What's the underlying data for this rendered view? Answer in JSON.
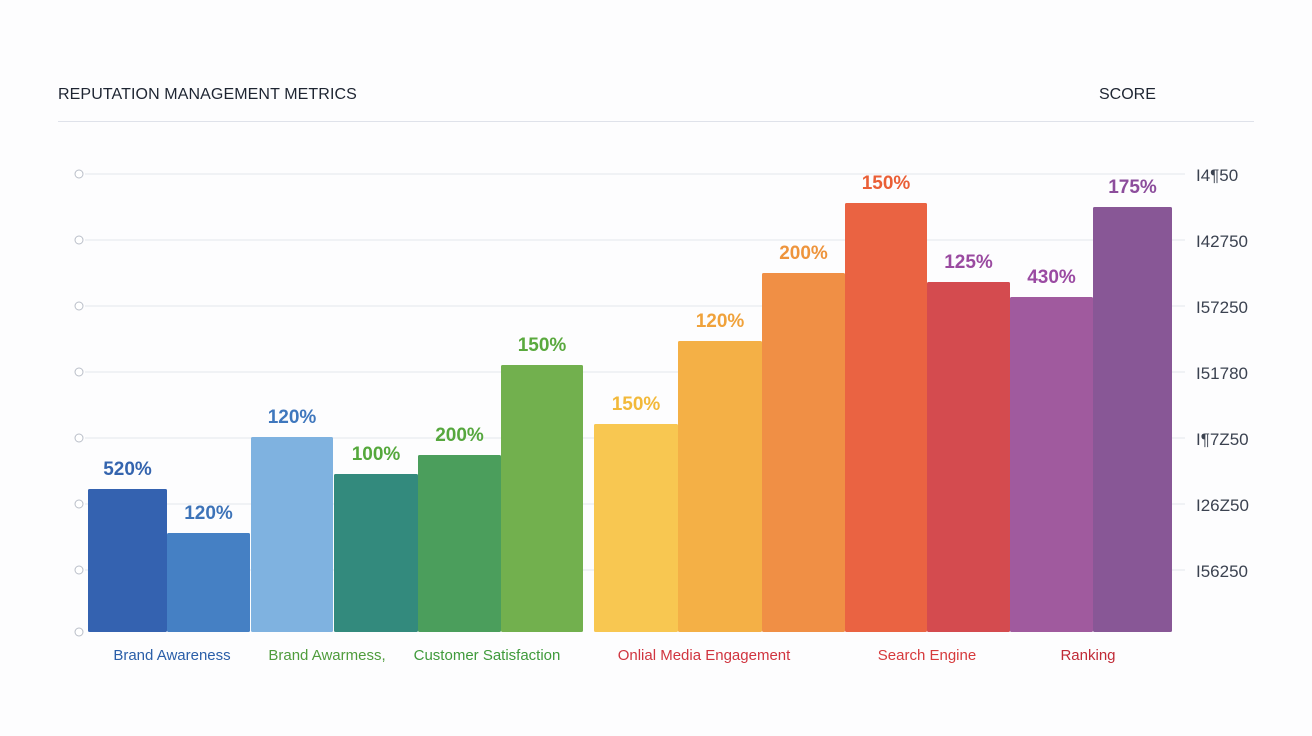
{
  "header": {
    "title": "REPUTATION MANAGEMENT METRICS",
    "score_label": "SCORE"
  },
  "chart_data": {
    "type": "bar",
    "title": "REPUTATION MANAGEMENT METRICS",
    "ylabel": "SCORE",
    "grid": true,
    "right_axis_ticks": [
      "I4¶50",
      "I42750",
      "I57250",
      "I51780",
      "I¶7Z50",
      "I26Z50",
      "I56250"
    ],
    "categories": [
      "Brand Awareness",
      "Brand Awarmess,",
      "Customer Satisfaction",
      "Onlial Media Engagement",
      "Search Engine",
      "Ranking"
    ],
    "category_colors": [
      "#2a5ea8",
      "#4f9c3c",
      "#3f9a3b",
      "#d0343f",
      "#d63a3c",
      "#c02a36"
    ],
    "bars": [
      {
        "label": "520%",
        "value": 143,
        "color": "#3462b0",
        "label_color": "#3464ae"
      },
      {
        "label": "120%",
        "value": 99,
        "color": "#4580c4",
        "label_color": "#3d73b8"
      },
      {
        "label": "120%",
        "value": 195,
        "color": "#7fb2e0",
        "label_color": "#3f77bd"
      },
      {
        "label": "100%",
        "value": 158,
        "color": "#338a7d",
        "label_color": "#55a83c"
      },
      {
        "label": "200%",
        "value": 177,
        "color": "#4b9e5c",
        "label_color": "#56a73e"
      },
      {
        "label": "150%",
        "value": 267,
        "color": "#72b04e",
        "label_color": "#5aa93e"
      },
      {
        "label": "150%",
        "value": 208,
        "color": "#f8c751",
        "label_color": "#f2b93a"
      },
      {
        "label": "120%",
        "value": 291,
        "color": "#f4b046",
        "label_color": "#f0a23b"
      },
      {
        "label": "200%",
        "value": 359,
        "color": "#f08f45",
        "label_color": "#ee943c"
      },
      {
        "label": "150%",
        "value": 429,
        "color": "#ea6342",
        "label_color": "#ea5f36"
      },
      {
        "label": "125%",
        "value": 350,
        "color": "#d44b4f",
        "label_color": "#9a4aa0"
      },
      {
        "label": "430%",
        "value": 335,
        "color": "#a05a9e",
        "label_color": "#9a4aa2"
      },
      {
        "label": "175%",
        "value": 425,
        "color": "#885796",
        "label_color": "#8c4d9c"
      }
    ]
  }
}
